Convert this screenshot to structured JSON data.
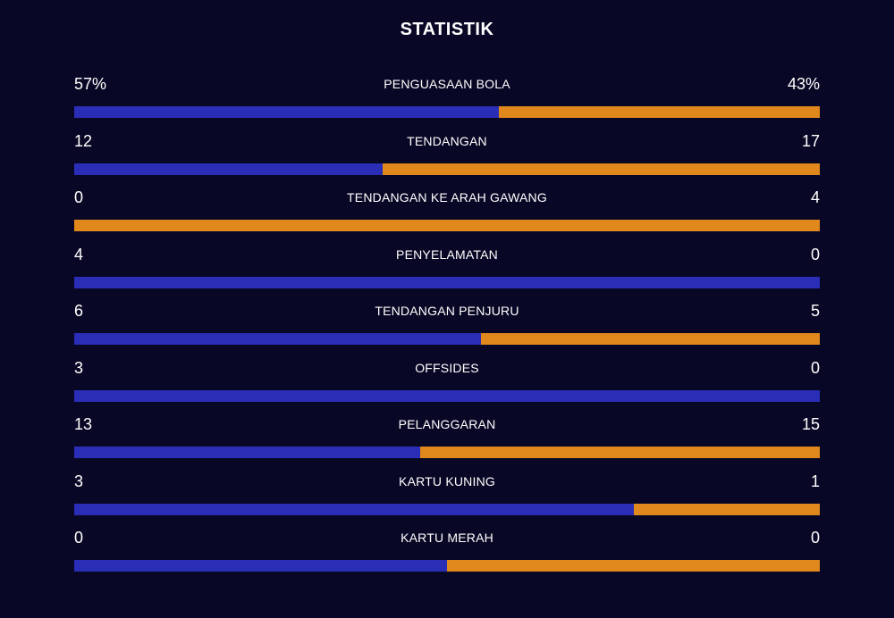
{
  "title": "STATISTIK",
  "colors": {
    "background": "#080826",
    "home": "#2A2DB5",
    "away": "#E0881C",
    "text": "#FFFFFF"
  },
  "stats": [
    {
      "label": "PENGUASAAN BOLA",
      "home_display": "57%",
      "away_display": "43%",
      "home_share": 0.57
    },
    {
      "label": "TENDANGAN",
      "home_display": "12",
      "away_display": "17",
      "home_share": 0.414
    },
    {
      "label": "TENDANGAN KE ARAH GAWANG",
      "home_display": "0",
      "away_display": "4",
      "home_share": 0.0
    },
    {
      "label": "PENYELAMATAN",
      "home_display": "4",
      "away_display": "0",
      "home_share": 1.0
    },
    {
      "label": "TENDANGAN PENJURU",
      "home_display": "6",
      "away_display": "5",
      "home_share": 0.545
    },
    {
      "label": "OFFSIDES",
      "home_display": "3",
      "away_display": "0",
      "home_share": 1.0
    },
    {
      "label": "PELANGGARAN",
      "home_display": "13",
      "away_display": "15",
      "home_share": 0.464
    },
    {
      "label": "KARTU KUNING",
      "home_display": "3",
      "away_display": "1",
      "home_share": 0.75
    },
    {
      "label": "KARTU MERAH",
      "home_display": "0",
      "away_display": "0",
      "home_share": 0.5
    }
  ]
}
